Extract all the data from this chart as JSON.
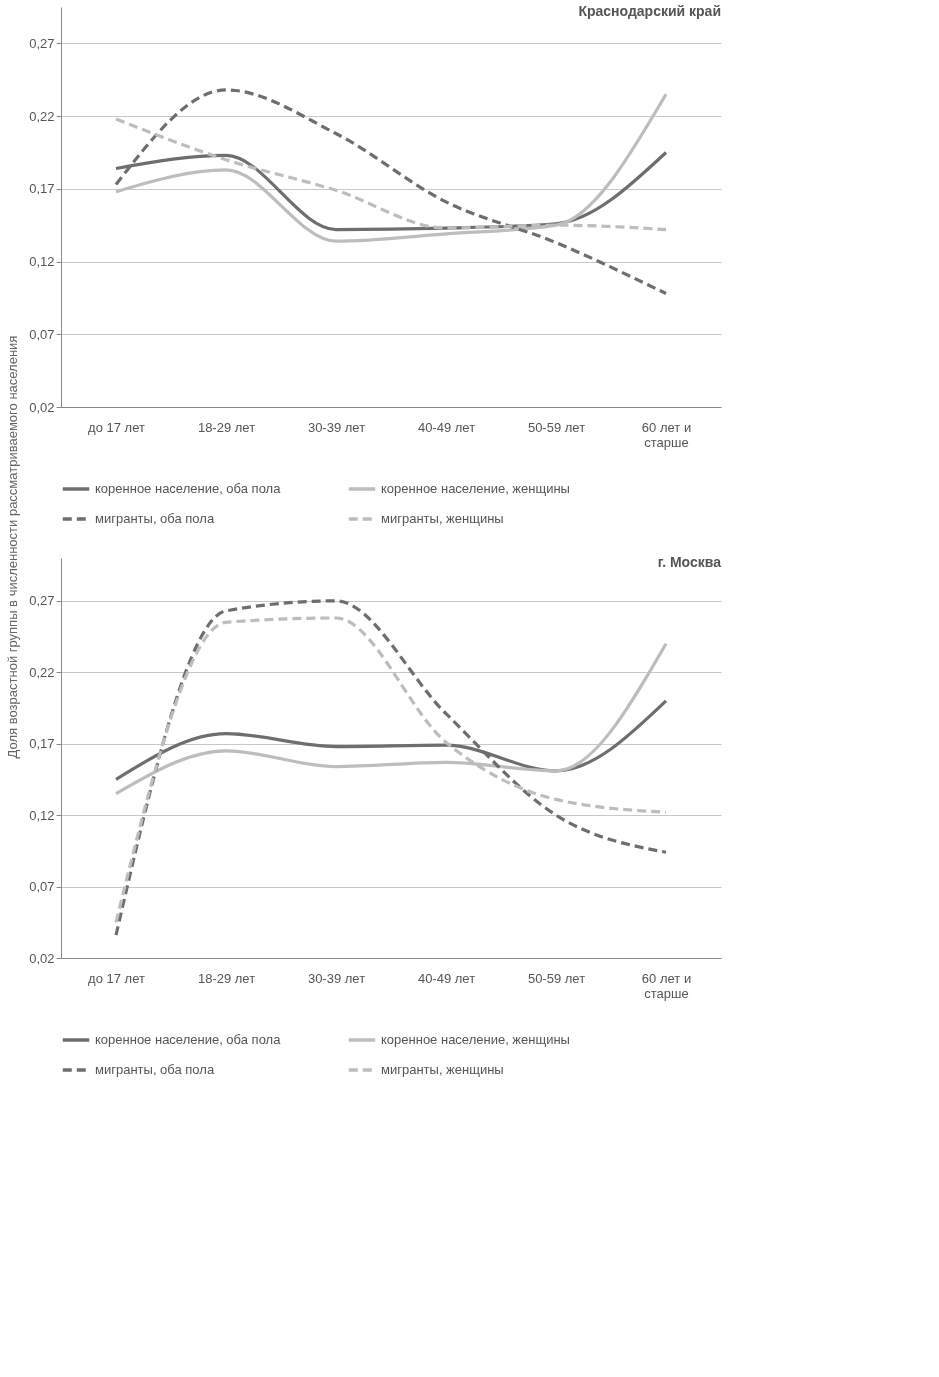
{
  "chart_data": [
    {
      "type": "line",
      "title": "Краснодарский край",
      "ylabel": "Доля возрастной группы в численности рассматриваемого населения",
      "categories": [
        "до 17 лет",
        "18-29 лет",
        "30-39 лет",
        "40-49 лет",
        "50-59 лет",
        "60 лет и\nстарше"
      ],
      "ylim": [
        0.02,
        0.295
      ],
      "yticks": [
        {
          "value": 0.02,
          "label": "0,02"
        },
        {
          "value": 0.07,
          "label": "0,07"
        },
        {
          "value": 0.12,
          "label": "0,12"
        },
        {
          "value": 0.17,
          "label": "0,17"
        },
        {
          "value": 0.22,
          "label": "0,22"
        },
        {
          "value": 0.27,
          "label": "0,27"
        }
      ],
      "grid": "y",
      "legend": "bottom",
      "series": [
        {
          "name": "коренное население, оба пола",
          "color": "#6e6e6e",
          "line_style": "solid",
          "values": [
            0.184,
            0.193,
            0.142,
            0.143,
            0.146,
            0.195
          ]
        },
        {
          "name": "коренное население, женщины",
          "color": "#bdbdbd",
          "line_style": "solid",
          "values": [
            0.168,
            0.183,
            0.134,
            0.139,
            0.145,
            0.235
          ]
        },
        {
          "name": "мигранты, оба пола",
          "color": "#6e6e6e",
          "line_style": "dashed",
          "values": [
            0.173,
            0.238,
            0.208,
            0.161,
            0.133,
            0.098
          ]
        },
        {
          "name": "мигранты, женщины",
          "color": "#bdbdbd",
          "line_style": "dashed",
          "values": [
            0.218,
            0.19,
            0.169,
            0.143,
            0.145,
            0.142
          ]
        }
      ]
    },
    {
      "type": "line",
      "title": "г. Москва",
      "categories": [
        "до 17 лет",
        "18-29 лет",
        "30-39 лет",
        "40-49 лет",
        "50-59 лет",
        "60 лет и\nстарше"
      ],
      "ylim": [
        0.02,
        0.3
      ],
      "yticks": [
        {
          "value": 0.02,
          "label": "0,02"
        },
        {
          "value": 0.07,
          "label": "0,07"
        },
        {
          "value": 0.12,
          "label": "0,12"
        },
        {
          "value": 0.17,
          "label": "0,17"
        },
        {
          "value": 0.22,
          "label": "0,22"
        },
        {
          "value": 0.27,
          "label": "0,27"
        }
      ],
      "grid": "y",
      "legend": "bottom",
      "series": [
        {
          "name": "коренное население, оба пола",
          "color": "#6e6e6e",
          "line_style": "solid",
          "values": [
            0.145,
            0.177,
            0.168,
            0.169,
            0.151,
            0.2
          ]
        },
        {
          "name": "коренное население, женщины",
          "color": "#bdbdbd",
          "line_style": "solid",
          "values": [
            0.135,
            0.165,
            0.154,
            0.157,
            0.151,
            0.24
          ]
        },
        {
          "name": "мигранты, оба пола",
          "color": "#6e6e6e",
          "line_style": "dashed",
          "values": [
            0.036,
            0.263,
            0.27,
            0.191,
            0.12,
            0.094
          ]
        },
        {
          "name": "мигранты, женщины",
          "color": "#bdbdbd",
          "line_style": "dashed",
          "values": [
            0.045,
            0.255,
            0.258,
            0.171,
            0.131,
            0.122
          ]
        }
      ]
    }
  ]
}
